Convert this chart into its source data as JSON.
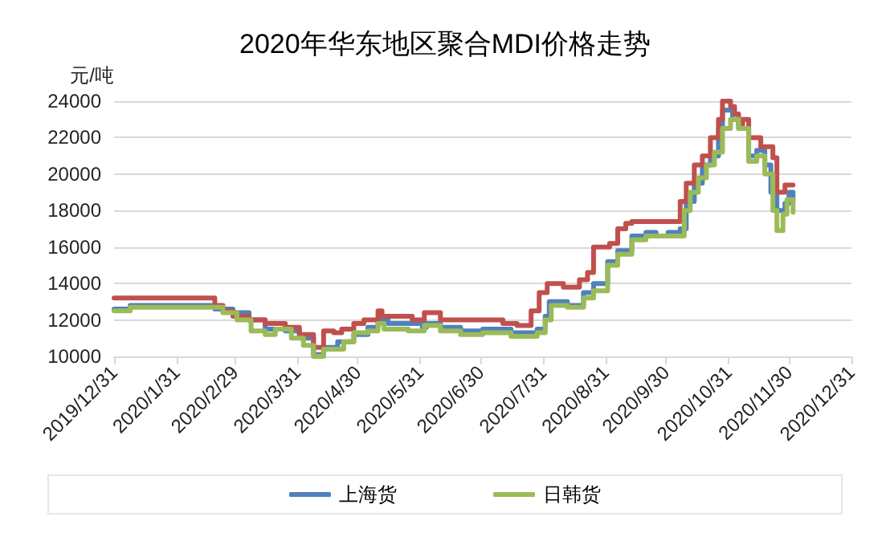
{
  "chart_data": {
    "type": "step",
    "title": "2020年华东地区聚合MDI价格走势",
    "ylabel": "元/吨",
    "xlim": [
      "2019-12-31",
      "2020-12-31"
    ],
    "xticks": [
      {
        "value": "2019-12-31",
        "label": "2019/12/31"
      },
      {
        "value": "2020-01-31",
        "label": "2020/1/31"
      },
      {
        "value": "2020-02-29",
        "label": "2020/2/29"
      },
      {
        "value": "2020-03-31",
        "label": "2020/3/31"
      },
      {
        "value": "2020-04-30",
        "label": "2020/4/30"
      },
      {
        "value": "2020-05-31",
        "label": "2020/5/31"
      },
      {
        "value": "2020-06-30",
        "label": "2020/6/30"
      },
      {
        "value": "2020-07-31",
        "label": "2020/7/31"
      },
      {
        "value": "2020-08-31",
        "label": "2020/8/31"
      },
      {
        "value": "2020-09-30",
        "label": "2020/9/30"
      },
      {
        "value": "2020-10-31",
        "label": "2020/10/31"
      },
      {
        "value": "2020-11-30",
        "label": "2020/11/30"
      },
      {
        "value": "2020-12-31",
        "label": "2020/12/31"
      }
    ],
    "ylim": [
      10000,
      24000
    ],
    "yticks": [
      10000,
      12000,
      14000,
      16000,
      18000,
      20000,
      22000,
      24000
    ],
    "grid": "y",
    "legend": "bottom",
    "marker": "none",
    "line_style": "solid",
    "series": [
      {
        "name": "上海货",
        "color": "#4f81bd",
        "x": [
          "2019-12-31",
          "2020-01-08",
          "2020-02-19",
          "2020-02-28",
          "2020-03-07",
          "2020-03-15",
          "2020-03-25",
          "2020-04-01",
          "2020-04-08",
          "2020-04-13",
          "2020-04-20",
          "2020-04-28",
          "2020-05-05",
          "2020-05-10",
          "2020-05-15",
          "2020-06-01",
          "2020-06-03",
          "2020-06-10",
          "2020-06-20",
          "2020-07-01",
          "2020-07-15",
          "2020-07-28",
          "2020-08-01",
          "2020-08-03",
          "2020-08-12",
          "2020-08-20",
          "2020-08-25",
          "2020-09-01",
          "2020-09-06",
          "2020-09-13",
          "2020-09-20",
          "2020-09-25",
          "2020-10-01",
          "2020-10-07",
          "2020-10-10",
          "2020-10-14",
          "2020-10-18",
          "2020-10-22",
          "2020-10-26",
          "2020-10-28",
          "2020-11-02",
          "2020-11-05",
          "2020-11-10",
          "2020-11-14",
          "2020-11-18",
          "2020-11-21",
          "2020-11-24",
          "2020-11-28",
          "2020-11-30",
          "2020-12-02"
        ],
        "values": [
          12600,
          12800,
          12600,
          12400,
          12000,
          11500,
          11400,
          11000,
          10100,
          10500,
          10800,
          11200,
          11600,
          12000,
          11800,
          11600,
          11800,
          11600,
          11400,
          11500,
          11300,
          11500,
          12200,
          13000,
          12800,
          13500,
          14000,
          15200,
          15800,
          16600,
          16800,
          16600,
          16800,
          17000,
          18500,
          19500,
          20500,
          21000,
          22500,
          23500,
          23000,
          22500,
          21000,
          21300,
          20500,
          19000,
          18000,
          18400,
          19000,
          18500
        ]
      },
      {
        "color": "#c0504d",
        "x": [
          "2019-12-31",
          "2020-02-19",
          "2020-02-23",
          "2020-02-28",
          "2020-03-07",
          "2020-03-15",
          "2020-03-25",
          "2020-04-01",
          "2020-04-08",
          "2020-04-13",
          "2020-04-18",
          "2020-04-22",
          "2020-04-28",
          "2020-05-03",
          "2020-05-10",
          "2020-05-12",
          "2020-05-27",
          "2020-06-02",
          "2020-06-10",
          "2020-07-11",
          "2020-07-18",
          "2020-07-25",
          "2020-07-29",
          "2020-08-02",
          "2020-08-10",
          "2020-08-18",
          "2020-08-22",
          "2020-08-25",
          "2020-09-02",
          "2020-09-06",
          "2020-09-10",
          "2020-09-13",
          "2020-10-07",
          "2020-10-10",
          "2020-10-14",
          "2020-10-18",
          "2020-10-22",
          "2020-10-26",
          "2020-10-28",
          "2020-11-01",
          "2020-11-03",
          "2020-11-05",
          "2020-11-07",
          "2020-11-10",
          "2020-11-16",
          "2020-11-22",
          "2020-11-24",
          "2020-11-28",
          "2020-12-02"
        ],
        "values": [
          13200,
          12800,
          12500,
          12200,
          12000,
          11800,
          11600,
          11200,
          10500,
          11400,
          11300,
          11500,
          11800,
          12000,
          12500,
          12200,
          12000,
          12400,
          12000,
          11800,
          11700,
          12500,
          13500,
          14000,
          13800,
          14200,
          14600,
          16000,
          16200,
          17000,
          17300,
          17400,
          18500,
          19500,
          20500,
          21000,
          22000,
          23000,
          24000,
          23700,
          23300,
          22700,
          23000,
          22000,
          21500,
          20900,
          19000,
          19400,
          19400
        ]
      },
      {
        "name": "日韩货",
        "color": "#9bbb59",
        "x": [
          "2019-12-31",
          "2020-01-08",
          "2020-02-19",
          "2020-02-23",
          "2020-03-01",
          "2020-03-08",
          "2020-03-15",
          "2020-03-20",
          "2020-03-28",
          "2020-04-03",
          "2020-04-08",
          "2020-04-13",
          "2020-04-23",
          "2020-04-28",
          "2020-05-05",
          "2020-05-10",
          "2020-05-13",
          "2020-05-25",
          "2020-06-02",
          "2020-06-10",
          "2020-06-20",
          "2020-07-01",
          "2020-07-15",
          "2020-07-28",
          "2020-08-01",
          "2020-08-04",
          "2020-08-12",
          "2020-08-20",
          "2020-08-25",
          "2020-09-01",
          "2020-09-06",
          "2020-09-13",
          "2020-09-20",
          "2020-10-07",
          "2020-10-09",
          "2020-10-12",
          "2020-10-16",
          "2020-10-20",
          "2020-10-24",
          "2020-10-28",
          "2020-11-01",
          "2020-11-05",
          "2020-11-10",
          "2020-11-14",
          "2020-11-18",
          "2020-11-22",
          "2020-11-24",
          "2020-11-27",
          "2020-11-29",
          "2020-12-02"
        ],
        "values": [
          12500,
          12700,
          12700,
          12400,
          12000,
          11400,
          11200,
          11500,
          11000,
          10600,
          10000,
          10400,
          10800,
          11300,
          11400,
          11800,
          11500,
          11400,
          11700,
          11400,
          11200,
          11300,
          11100,
          11300,
          12000,
          12800,
          12700,
          13200,
          13600,
          15000,
          15600,
          16400,
          16600,
          16600,
          18000,
          19000,
          19800,
          20500,
          21200,
          22500,
          23000,
          22500,
          20700,
          21000,
          20000,
          18000,
          16900,
          17800,
          18600,
          17900
        ]
      }
    ]
  }
}
